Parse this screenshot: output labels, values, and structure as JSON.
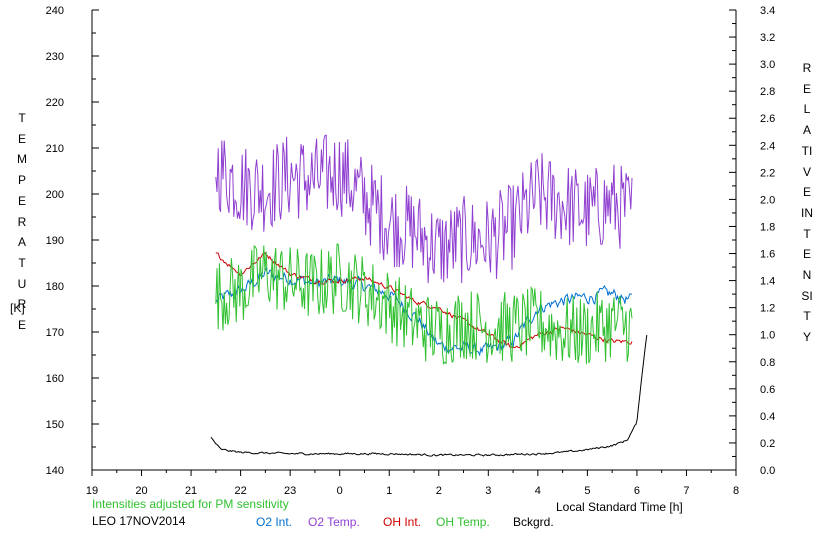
{
  "chart_data": {
    "type": "line",
    "note": "Intensities adjusted for PM sensitivity",
    "station_date": "LEO 17NOV2014",
    "xlabel": "Local Standard Time [h]",
    "ylabel_left": "TEMPERATURE",
    "ylabel_left_unit": "[K]",
    "ylabel_right": "RELATIVE INTENSITY",
    "x_ticks": [
      "19",
      "20",
      "21",
      "22",
      "23",
      "0",
      "1",
      "2",
      "3",
      "4",
      "5",
      "6",
      "7",
      "8"
    ],
    "x_range": [
      19,
      32
    ],
    "y_left_ticks": [
      "240",
      "230",
      "220",
      "210",
      "200",
      "190",
      "180",
      "170",
      "160",
      "150",
      "140"
    ],
    "y_left_range": [
      140,
      240
    ],
    "y_right_ticks": [
      "3.4",
      "3.2",
      "3.0",
      "2.8",
      "2.6",
      "2.4",
      "2.2",
      "2.0",
      "1.8",
      "1.6",
      "1.4",
      "1.2",
      "1.0",
      "0.8",
      "0.6",
      "0.4",
      "0.2",
      "0.0"
    ],
    "y_right_range": [
      0,
      3.4
    ],
    "grid": false,
    "legend_position": "bottom",
    "series": [
      {
        "name": "O2 Int.",
        "axis": "right",
        "color": "#0070d0",
        "noise": 0.04,
        "x": [
          21.5,
          22.0,
          22.5,
          23.0,
          23.5,
          24.0,
          24.5,
          25.0,
          25.5,
          26.0,
          26.5,
          27.0,
          27.5,
          28.0,
          28.5,
          29.0,
          29.5,
          29.9
        ],
        "y": [
          1.25,
          1.32,
          1.45,
          1.42,
          1.38,
          1.4,
          1.36,
          1.3,
          1.15,
          0.92,
          0.9,
          0.88,
          0.95,
          1.2,
          1.25,
          1.28,
          1.3,
          1.25
        ]
      },
      {
        "name": "O2 Temp.",
        "axis": "left",
        "color": "#9040d0",
        "noise": 6,
        "x": [
          21.5,
          22.0,
          22.5,
          23.0,
          23.5,
          24.0,
          24.5,
          25.0,
          25.5,
          26.0,
          26.5,
          27.0,
          27.5,
          28.0,
          28.5,
          29.0,
          29.5,
          29.9
        ],
        "y": [
          206,
          202,
          201,
          204,
          203,
          205,
          199,
          194,
          192,
          188,
          190,
          190,
          193,
          200,
          198,
          196,
          198,
          196
        ]
      },
      {
        "name": "OH Int.",
        "axis": "right",
        "color": "#d00000",
        "noise": 0.015,
        "x": [
          21.5,
          22.0,
          22.5,
          23.0,
          23.5,
          24.0,
          24.5,
          25.0,
          25.5,
          26.0,
          26.5,
          27.0,
          27.5,
          28.0,
          28.5,
          29.0,
          29.5,
          29.9
        ],
        "y": [
          1.6,
          1.45,
          1.6,
          1.45,
          1.4,
          1.4,
          1.42,
          1.35,
          1.25,
          1.2,
          1.1,
          1.0,
          0.9,
          1.0,
          1.05,
          1.0,
          0.95,
          0.95
        ]
      },
      {
        "name": "OH Temp.",
        "axis": "left",
        "color": "#30c030",
        "noise": 5,
        "x": [
          21.5,
          22.0,
          22.5,
          23.0,
          23.5,
          24.0,
          24.5,
          25.0,
          25.5,
          26.0,
          26.5,
          27.0,
          27.5,
          28.0,
          28.5,
          29.0,
          29.5,
          29.9
        ],
        "y": [
          178,
          179,
          183,
          181,
          180,
          182,
          179,
          176,
          172,
          170,
          172,
          171,
          171,
          172,
          170,
          170,
          172,
          171
        ]
      },
      {
        "name": "Bckgrd.",
        "axis": "right",
        "color": "#000000",
        "noise": 0.006,
        "x": [
          21.4,
          21.6,
          22.0,
          23.0,
          24.0,
          25.0,
          26.0,
          27.0,
          28.0,
          28.5,
          29.0,
          29.5,
          29.8,
          30.0,
          30.1,
          30.2
        ],
        "y": [
          0.24,
          0.15,
          0.13,
          0.12,
          0.12,
          0.12,
          0.11,
          0.11,
          0.12,
          0.13,
          0.15,
          0.18,
          0.22,
          0.35,
          0.7,
          1.0
        ]
      }
    ]
  }
}
